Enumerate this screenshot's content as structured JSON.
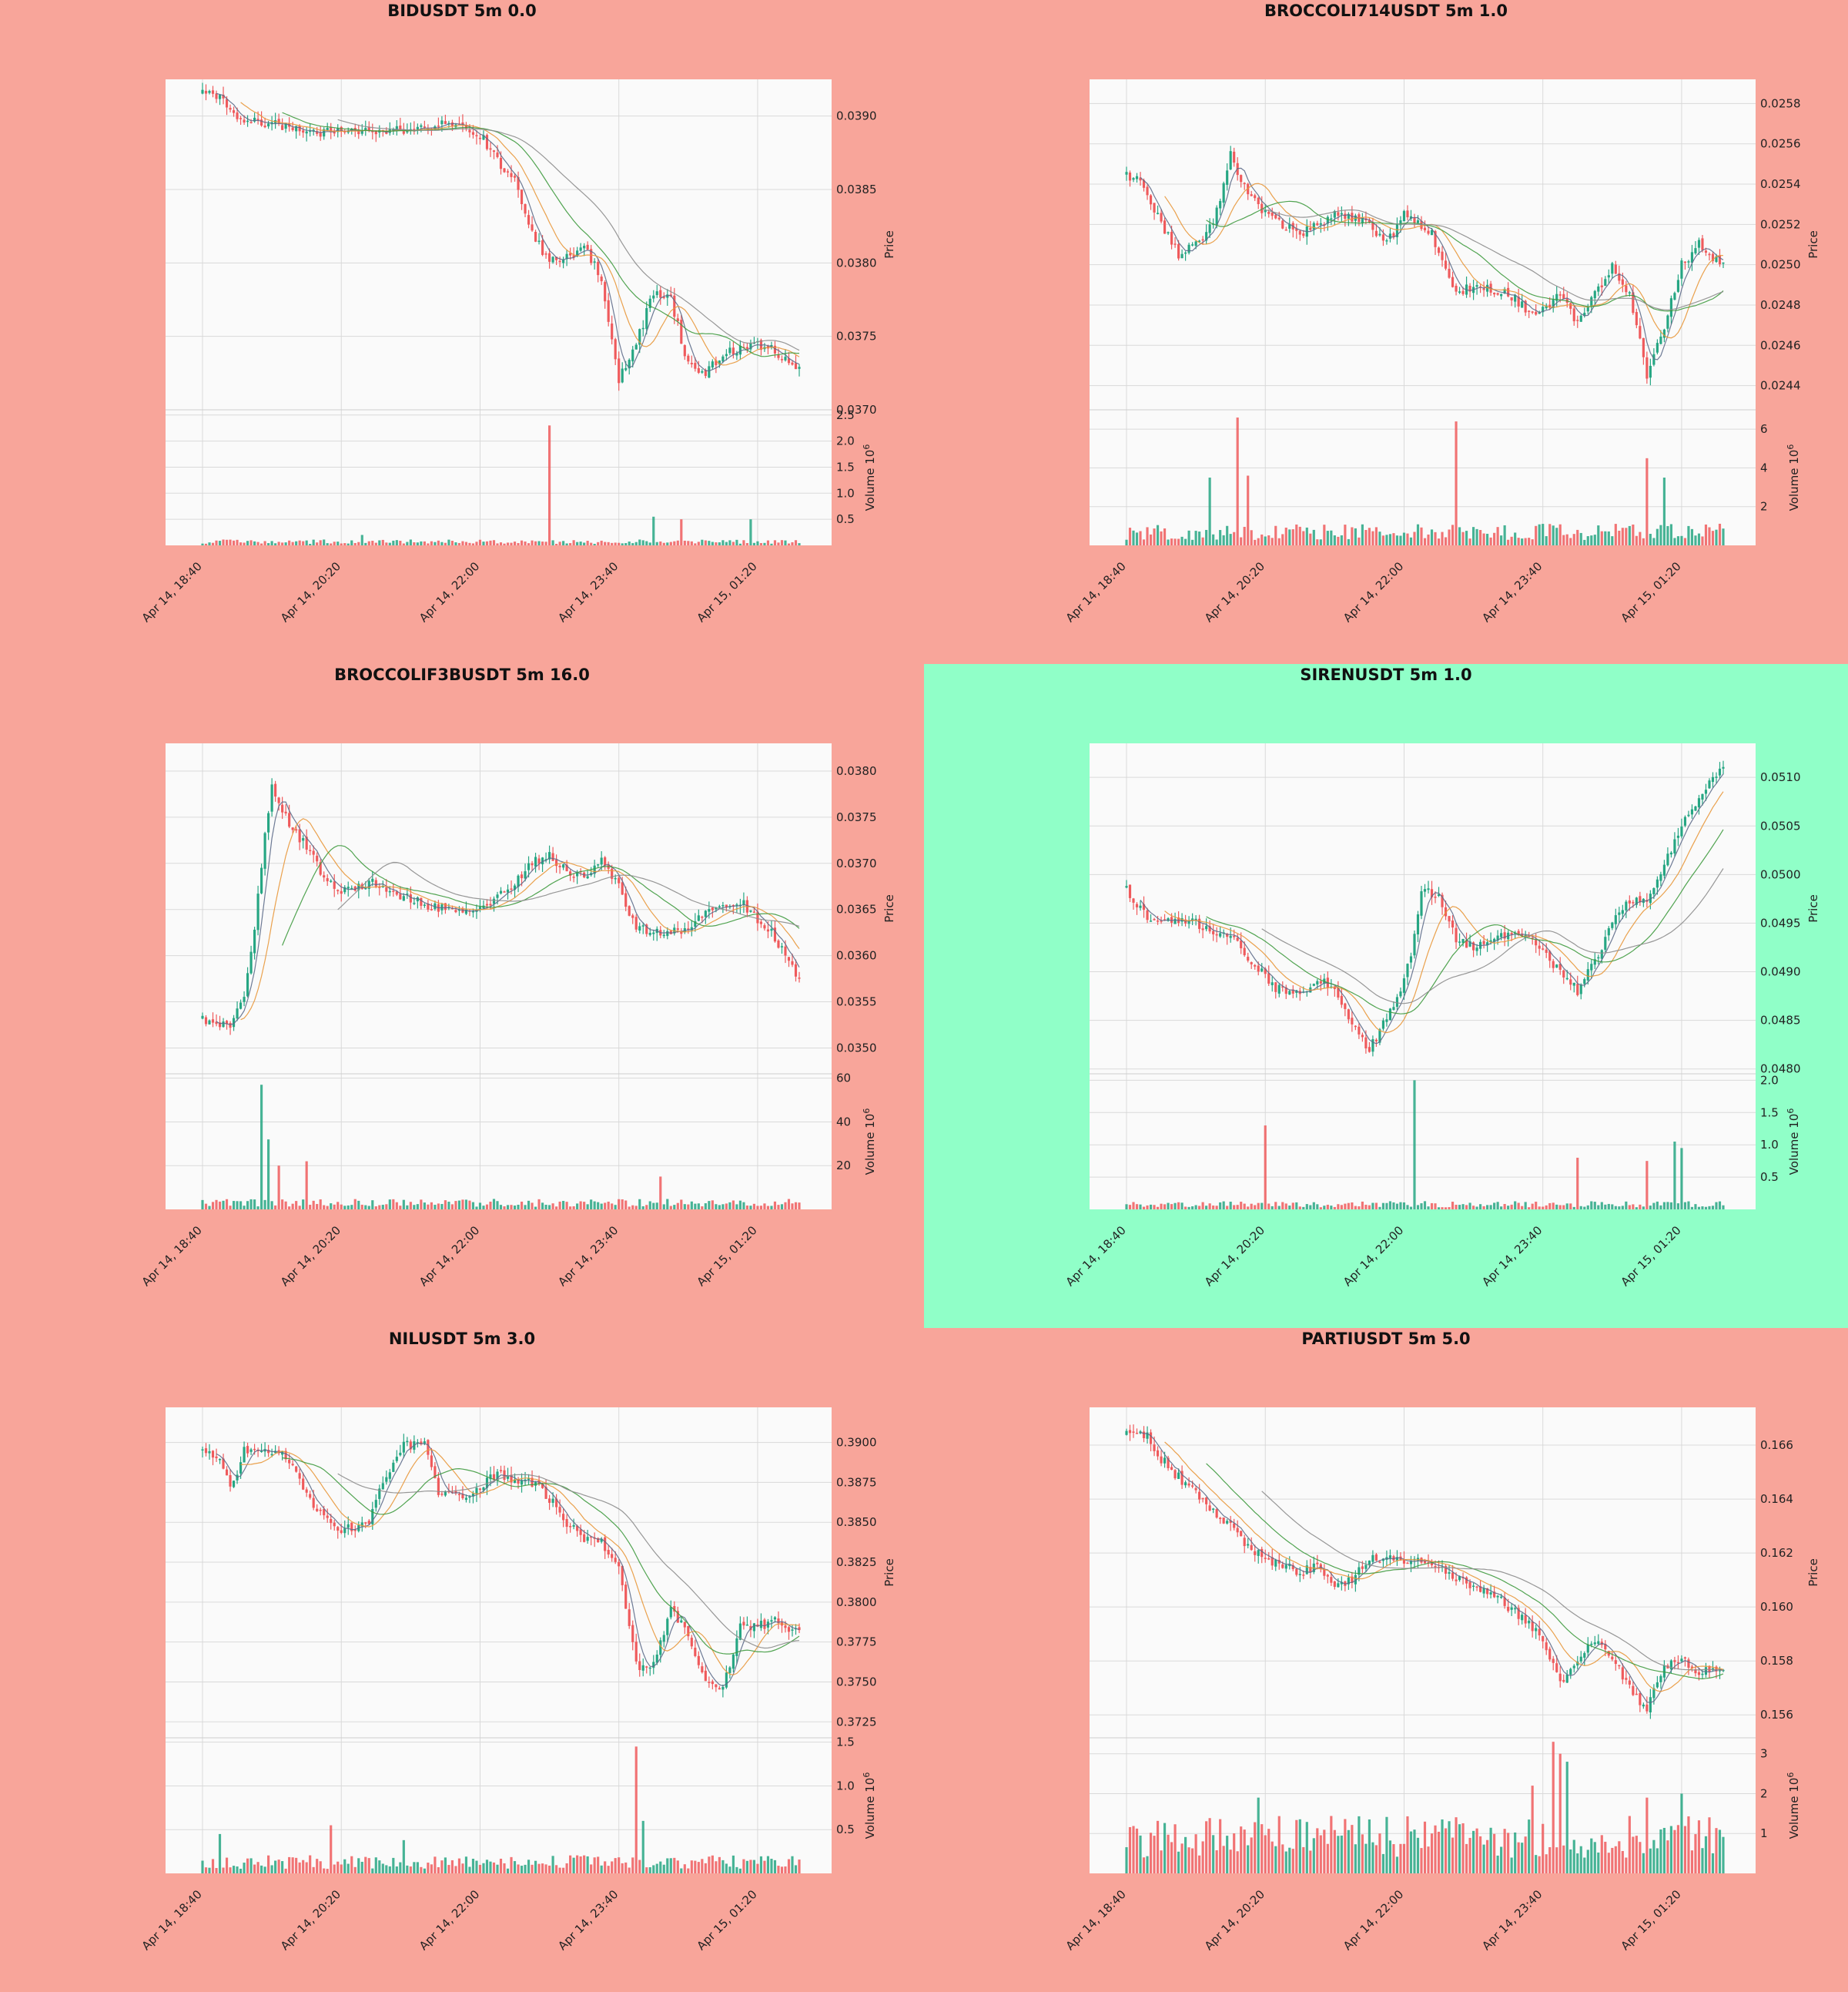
{
  "figure": {
    "background_colors": {
      "loss": "#F8A59A",
      "win": "#90FFC8"
    },
    "up_color": "#26A683",
    "down_color": "#EF5A5C",
    "ma_colors": [
      "#5D6B8A",
      "#E8973A",
      "#3E9A3E",
      "#8C8C8C"
    ],
    "x_tick_labels": [
      "Apr 14, 18:40",
      "Apr 14, 20:20",
      "Apr 14, 22:00",
      "Apr 14, 23:40",
      "Apr 15, 01:20"
    ],
    "price_axis_label": "Price",
    "volume_axis_label": "Volume  10",
    "volume_exponent": "6"
  },
  "chart_data": [
    {
      "type": "candlestick",
      "title": "BIDUSDT 5m 0.0",
      "background": "loss",
      "ylabel": "Price",
      "ylim": [
        0.037,
        0.03925
      ],
      "yticks": [
        "0.0370",
        "0.0375",
        "0.0380",
        "0.0385",
        "0.0390"
      ],
      "yticks_values": [
        0.037,
        0.0375,
        0.038,
        0.0385,
        0.039
      ],
      "volume_ylim": [
        0,
        2.6
      ],
      "volume_ticks": [
        "0.5",
        "1.0",
        "1.5",
        "2.0",
        "2.5"
      ],
      "volume_ticks_values": [
        0.5,
        1.0,
        1.5,
        2.0,
        2.5
      ],
      "close_path": [
        [
          0,
          0.03915
        ],
        [
          5,
          0.03912
        ],
        [
          10,
          0.03898
        ],
        [
          20,
          0.03895
        ],
        [
          30,
          0.03888
        ],
        [
          40,
          0.0389
        ],
        [
          50,
          0.03888
        ],
        [
          60,
          0.03892
        ],
        [
          70,
          0.03895
        ],
        [
          80,
          0.03888
        ],
        [
          85,
          0.0387
        ],
        [
          90,
          0.03855
        ],
        [
          95,
          0.0382
        ],
        [
          100,
          0.038
        ],
        [
          105,
          0.03805
        ],
        [
          110,
          0.0381
        ],
        [
          115,
          0.0379
        ],
        [
          120,
          0.0372
        ],
        [
          125,
          0.03745
        ],
        [
          130,
          0.0378
        ],
        [
          135,
          0.03775
        ],
        [
          140,
          0.0373
        ],
        [
          145,
          0.03725
        ],
        [
          150,
          0.03738
        ],
        [
          160,
          0.03745
        ],
        [
          165,
          0.0374
        ],
        [
          170,
          0.0373
        ]
      ],
      "volume_spikes": [
        [
          100,
          2.3
        ],
        [
          46,
          0.2
        ],
        [
          130,
          0.55
        ],
        [
          138,
          0.5
        ],
        [
          158,
          0.5
        ]
      ],
      "volume_base": 0.07,
      "seed": 11
    },
    {
      "type": "candlestick",
      "title": "BROCCOLI714USDT 5m 1.0",
      "background": "loss",
      "ylabel": "Price",
      "ylim": [
        0.02428,
        0.02592
      ],
      "yticks": [
        "0.0244",
        "0.0246",
        "0.0248",
        "0.0250",
        "0.0252",
        "0.0254",
        "0.0256",
        "0.0258"
      ],
      "yticks_values": [
        0.0244,
        0.0246,
        0.0248,
        0.025,
        0.0252,
        0.0254,
        0.0256,
        0.0258
      ],
      "volume_ylim": [
        0,
        7
      ],
      "volume_ticks": [
        "2",
        "4",
        "6"
      ],
      "volume_ticks_values": [
        2,
        4,
        6
      ],
      "close_path": [
        [
          0,
          0.02545
        ],
        [
          5,
          0.0254
        ],
        [
          10,
          0.0252
        ],
        [
          15,
          0.02505
        ],
        [
          20,
          0.0251
        ],
        [
          25,
          0.0252
        ],
        [
          30,
          0.02555
        ],
        [
          35,
          0.02535
        ],
        [
          40,
          0.02525
        ],
        [
          50,
          0.02515
        ],
        [
          60,
          0.02525
        ],
        [
          70,
          0.0252
        ],
        [
          75,
          0.0251
        ],
        [
          80,
          0.02525
        ],
        [
          88,
          0.02515
        ],
        [
          95,
          0.02485
        ],
        [
          100,
          0.0249
        ],
        [
          110,
          0.02485
        ],
        [
          118,
          0.02475
        ],
        [
          125,
          0.02485
        ],
        [
          130,
          0.0247
        ],
        [
          135,
          0.02485
        ],
        [
          140,
          0.025
        ],
        [
          145,
          0.02485
        ],
        [
          150,
          0.02445
        ],
        [
          155,
          0.0247
        ],
        [
          160,
          0.025
        ],
        [
          165,
          0.0251
        ],
        [
          172,
          0.025
        ]
      ],
      "volume_spikes": [
        [
          32,
          6.6
        ],
        [
          95,
          6.4
        ],
        [
          150,
          4.5
        ],
        [
          155,
          3.5
        ],
        [
          24,
          3.5
        ],
        [
          35,
          3.6
        ]
      ],
      "volume_base": 0.7,
      "seed": 23
    },
    {
      "type": "candlestick",
      "title": "BROCCOLIF3BUSDT 5m 16.0",
      "background": "loss",
      "ylabel": "Price",
      "ylim": [
        0.03472,
        0.0383
      ],
      "yticks": [
        "0.0350",
        "0.0355",
        "0.0360",
        "0.0365",
        "0.0370",
        "0.0375",
        "0.0380"
      ],
      "yticks_values": [
        0.035,
        0.0355,
        0.036,
        0.0365,
        0.037,
        0.0375,
        0.038
      ],
      "volume_ylim": [
        0,
        62
      ],
      "volume_ticks": [
        "20",
        "40",
        "60"
      ],
      "volume_ticks_values": [
        20,
        40,
        60
      ],
      "close_path": [
        [
          0,
          0.0353
        ],
        [
          8,
          0.03525
        ],
        [
          12,
          0.03555
        ],
        [
          15,
          0.0363
        ],
        [
          18,
          0.0373
        ],
        [
          20,
          0.03785
        ],
        [
          25,
          0.0374
        ],
        [
          30,
          0.0372
        ],
        [
          35,
          0.03685
        ],
        [
          40,
          0.0367
        ],
        [
          50,
          0.0368
        ],
        [
          60,
          0.0366
        ],
        [
          70,
          0.0365
        ],
        [
          80,
          0.0365
        ],
        [
          88,
          0.0367
        ],
        [
          95,
          0.037
        ],
        [
          100,
          0.0371
        ],
        [
          105,
          0.0369
        ],
        [
          110,
          0.03685
        ],
        [
          115,
          0.03705
        ],
        [
          120,
          0.03675
        ],
        [
          125,
          0.0363
        ],
        [
          130,
          0.03625
        ],
        [
          140,
          0.0363
        ],
        [
          145,
          0.03645
        ],
        [
          155,
          0.0366
        ],
        [
          160,
          0.0364
        ],
        [
          165,
          0.0362
        ],
        [
          172,
          0.03575
        ]
      ],
      "volume_spikes": [
        [
          17,
          57
        ],
        [
          19,
          32
        ],
        [
          22,
          20
        ],
        [
          30,
          22
        ],
        [
          132,
          15
        ]
      ],
      "volume_base": 3,
      "seed": 37
    },
    {
      "type": "candlestick",
      "title": "SIRENUSDT 5m 1.0",
      "background": "win",
      "ylabel": "Price",
      "ylim": [
        0.04795,
        0.05135
      ],
      "yticks": [
        "0.0480",
        "0.0485",
        "0.0490",
        "0.0495",
        "0.0500",
        "0.0505",
        "0.0510"
      ],
      "yticks_values": [
        0.048,
        0.0485,
        0.049,
        0.0495,
        0.05,
        0.0505,
        0.051
      ],
      "volume_ylim": [
        0,
        2.1
      ],
      "volume_ticks": [
        "0.5",
        "1.0",
        "1.5",
        "2.0"
      ],
      "volume_ticks_values": [
        0.5,
        1.0,
        1.5,
        2.0
      ],
      "close_path": [
        [
          0,
          0.04985
        ],
        [
          5,
          0.0496
        ],
        [
          10,
          0.0495
        ],
        [
          20,
          0.0495
        ],
        [
          30,
          0.04935
        ],
        [
          38,
          0.04905
        ],
        [
          42,
          0.04885
        ],
        [
          50,
          0.04875
        ],
        [
          55,
          0.04895
        ],
        [
          60,
          0.0488
        ],
        [
          65,
          0.0485
        ],
        [
          70,
          0.0482
        ],
        [
          78,
          0.0487
        ],
        [
          82,
          0.0492
        ],
        [
          85,
          0.04985
        ],
        [
          90,
          0.04975
        ],
        [
          95,
          0.04935
        ],
        [
          100,
          0.04925
        ],
        [
          110,
          0.0494
        ],
        [
          118,
          0.0493
        ],
        [
          125,
          0.049
        ],
        [
          130,
          0.0488
        ],
        [
          135,
          0.0491
        ],
        [
          140,
          0.0495
        ],
        [
          145,
          0.04975
        ],
        [
          150,
          0.0497
        ],
        [
          155,
          0.0501
        ],
        [
          160,
          0.0505
        ],
        [
          165,
          0.0508
        ],
        [
          172,
          0.0511
        ]
      ],
      "volume_spikes": [
        [
          83,
          2.0
        ],
        [
          40,
          1.3
        ],
        [
          130,
          0.8
        ],
        [
          150,
          0.75
        ],
        [
          158,
          1.05
        ],
        [
          160,
          0.95
        ]
      ],
      "volume_base": 0.08,
      "seed": 41
    },
    {
      "type": "candlestick",
      "title": "NILUSDT 5m 3.0",
      "background": "loss",
      "ylabel": "Price",
      "ylim": [
        0.3715,
        0.3922
      ],
      "yticks": [
        "0.3725",
        "0.3750",
        "0.3775",
        "0.3800",
        "0.3825",
        "0.3850",
        "0.3875",
        "0.3900"
      ],
      "yticks_values": [
        0.3725,
        0.375,
        0.3775,
        0.38,
        0.3825,
        0.385,
        0.3875,
        0.39
      ],
      "volume_ylim": [
        0,
        1.55
      ],
      "volume_ticks": [
        "0.5",
        "1.0",
        "1.5"
      ],
      "volume_ticks_values": [
        0.5,
        1.0,
        1.5
      ],
      "close_path": [
        [
          0,
          0.3895
        ],
        [
          5,
          0.3892
        ],
        [
          8,
          0.387
        ],
        [
          12,
          0.3895
        ],
        [
          20,
          0.3895
        ],
        [
          25,
          0.389
        ],
        [
          30,
          0.3868
        ],
        [
          35,
          0.3852
        ],
        [
          40,
          0.3845
        ],
        [
          48,
          0.385
        ],
        [
          52,
          0.3875
        ],
        [
          58,
          0.3898
        ],
        [
          64,
          0.39
        ],
        [
          68,
          0.387
        ],
        [
          75,
          0.3865
        ],
        [
          85,
          0.388
        ],
        [
          95,
          0.3875
        ],
        [
          100,
          0.3865
        ],
        [
          105,
          0.385
        ],
        [
          110,
          0.384
        ],
        [
          115,
          0.3838
        ],
        [
          120,
          0.3823
        ],
        [
          125,
          0.376
        ],
        [
          130,
          0.376
        ],
        [
          135,
          0.3795
        ],
        [
          140,
          0.378
        ],
        [
          145,
          0.375
        ],
        [
          150,
          0.3745
        ],
        [
          155,
          0.3785
        ],
        [
          160,
          0.3785
        ],
        [
          165,
          0.3788
        ],
        [
          172,
          0.378
        ]
      ],
      "volume_spikes": [
        [
          125,
          1.45
        ],
        [
          127,
          0.6
        ],
        [
          37,
          0.55
        ],
        [
          5,
          0.45
        ],
        [
          58,
          0.38
        ]
      ],
      "volume_base": 0.13,
      "seed": 53
    },
    {
      "type": "candlestick",
      "title": "PARTIUSDT 5m 5.0",
      "background": "loss",
      "ylabel": "Price",
      "ylim": [
        0.15515,
        0.1674
      ],
      "yticks": [
        "0.156",
        "0.158",
        "0.160",
        "0.162",
        "0.164",
        "0.166"
      ],
      "yticks_values": [
        0.156,
        0.158,
        0.16,
        0.162,
        0.164,
        0.166
      ],
      "volume_ylim": [
        0,
        3.4
      ],
      "volume_ticks": [
        "1",
        "2",
        "3"
      ],
      "volume_ticks_values": [
        1,
        2,
        3
      ],
      "close_path": [
        [
          0,
          0.1664
        ],
        [
          6,
          0.1664
        ],
        [
          10,
          0.1655
        ],
        [
          15,
          0.1648
        ],
        [
          20,
          0.1642
        ],
        [
          25,
          0.1635
        ],
        [
          30,
          0.163
        ],
        [
          35,
          0.1622
        ],
        [
          40,
          0.1618
        ],
        [
          50,
          0.1613
        ],
        [
          55,
          0.1615
        ],
        [
          60,
          0.1607
        ],
        [
          65,
          0.161
        ],
        [
          70,
          0.1618
        ],
        [
          80,
          0.1617
        ],
        [
          90,
          0.1616
        ],
        [
          95,
          0.161
        ],
        [
          100,
          0.1608
        ],
        [
          105,
          0.1605
        ],
        [
          110,
          0.16
        ],
        [
          115,
          0.1595
        ],
        [
          120,
          0.1588
        ],
        [
          125,
          0.1572
        ],
        [
          130,
          0.158
        ],
        [
          135,
          0.1588
        ],
        [
          140,
          0.1582
        ],
        [
          145,
          0.157
        ],
        [
          150,
          0.1562
        ],
        [
          155,
          0.1578
        ],
        [
          160,
          0.158
        ],
        [
          165,
          0.1576
        ],
        [
          172,
          0.1576
        ]
      ],
      "volume_spikes": [
        [
          123,
          3.3
        ],
        [
          125,
          3.0
        ],
        [
          127,
          2.8
        ],
        [
          117,
          2.2
        ],
        [
          38,
          1.9
        ],
        [
          160,
          2.0
        ],
        [
          150,
          1.9
        ]
      ],
      "volume_base": 0.9,
      "seed": 67
    }
  ]
}
